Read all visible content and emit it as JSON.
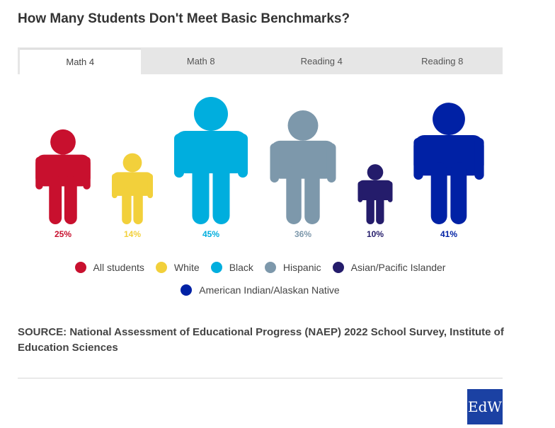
{
  "title": "How Many Students Don't Meet Basic Benchmarks?",
  "tabs": [
    {
      "label": "Math 4",
      "active": true
    },
    {
      "label": "Math 8",
      "active": false
    },
    {
      "label": "Reading 4",
      "active": false
    },
    {
      "label": "Reading 8",
      "active": false
    }
  ],
  "chart_data": {
    "type": "pictograph",
    "unit": "%",
    "categories": [
      "All students",
      "White",
      "Black",
      "Hispanic",
      "Asian/Pacific Islander",
      "American Indian/Alaskan Native"
    ],
    "values": [
      25,
      14,
      45,
      36,
      10,
      41
    ],
    "value_labels": [
      "25%",
      "14%",
      "45%",
      "36%",
      "10%",
      "41%"
    ],
    "colors": [
      "#c8102e",
      "#f2d03b",
      "#00aede",
      "#7d98ab",
      "#241c6b",
      "#0021a5"
    ],
    "legend_placement": "bottom"
  },
  "source": "SOURCE: National Assessment of Educational Progress (NAEP) 2022 School Survey, Institute of Education Sciences",
  "logo": {
    "text": "EdW",
    "color": "#1b41a3"
  }
}
